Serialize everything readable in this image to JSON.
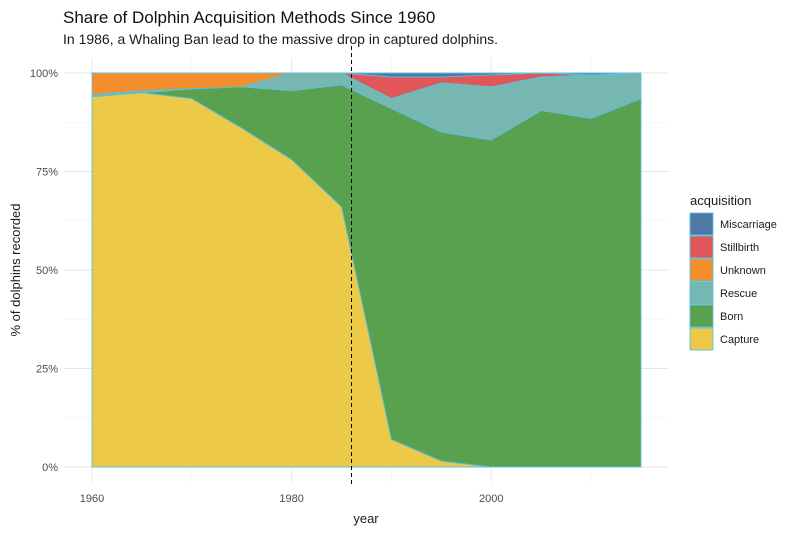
{
  "chart_data": {
    "type": "area",
    "stacked": "percent",
    "title": "Share of Dolphin Acquisition Methods Since 1960",
    "subtitle": "In 1986, a Whaling Ban lead to the massive drop in captured dolphins.",
    "xlabel": "year",
    "ylabel": "% of dolphins recorded",
    "xlim": [
      1960,
      2015
    ],
    "ylim": [
      0,
      1
    ],
    "x_ticks": [
      1960,
      1980,
      2000
    ],
    "x_tick_labels": [
      "1960",
      "1980",
      "2000"
    ],
    "y_ticks": [
      0,
      0.25,
      0.5,
      0.75,
      1
    ],
    "y_tick_labels": [
      "0%",
      "25%",
      "50%",
      "75%",
      "100%"
    ],
    "grid": true,
    "legend_title": "acquisition",
    "legend_position": "right",
    "x": [
      1960,
      1965,
      1970,
      1975,
      1980,
      1985,
      1990,
      1995,
      2000,
      2005,
      2010,
      2015
    ],
    "series": [
      {
        "name": "Capture",
        "color": "#EDC948",
        "values": [
          0.94,
          0.95,
          0.935,
          0.86,
          0.78,
          0.66,
          0.07,
          0.015,
          0.0,
          0.0,
          0.0,
          0.0
        ]
      },
      {
        "name": "Born",
        "color": "#59A14F",
        "values": [
          0.0,
          0.0,
          0.025,
          0.105,
          0.175,
          0.31,
          0.84,
          0.835,
          0.83,
          0.905,
          0.885,
          0.935
        ]
      },
      {
        "name": "Rescue",
        "color": "#76B7B2",
        "values": [
          0.005,
          0.005,
          0.0,
          0.0,
          0.045,
          0.03,
          0.025,
          0.125,
          0.135,
          0.085,
          0.11,
          0.065
        ]
      },
      {
        "name": "Unknown",
        "color": "#F28E2B",
        "values": [
          0.055,
          0.045,
          0.04,
          0.035,
          0.0,
          0.0,
          0.0,
          0.0,
          0.0,
          0.0,
          0.0,
          0.0
        ]
      },
      {
        "name": "Stillbirth",
        "color": "#E15759",
        "values": [
          0.0,
          0.0,
          0.0,
          0.0,
          0.0,
          0.0,
          0.055,
          0.015,
          0.03,
          0.01,
          0.0,
          0.0
        ]
      },
      {
        "name": "Miscarriage",
        "color": "#4E79A7",
        "values": [
          0.0,
          0.0,
          0.0,
          0.0,
          0.0,
          0.0,
          0.01,
          0.01,
          0.005,
          0.0,
          0.005,
          0.0
        ]
      }
    ],
    "legend_order": [
      "Miscarriage",
      "Stillbirth",
      "Unknown",
      "Rescue",
      "Born",
      "Capture"
    ],
    "annotations": [
      {
        "type": "vline",
        "x": 1986,
        "style": "dashed"
      }
    ],
    "outline_color": "#5bc0de"
  }
}
